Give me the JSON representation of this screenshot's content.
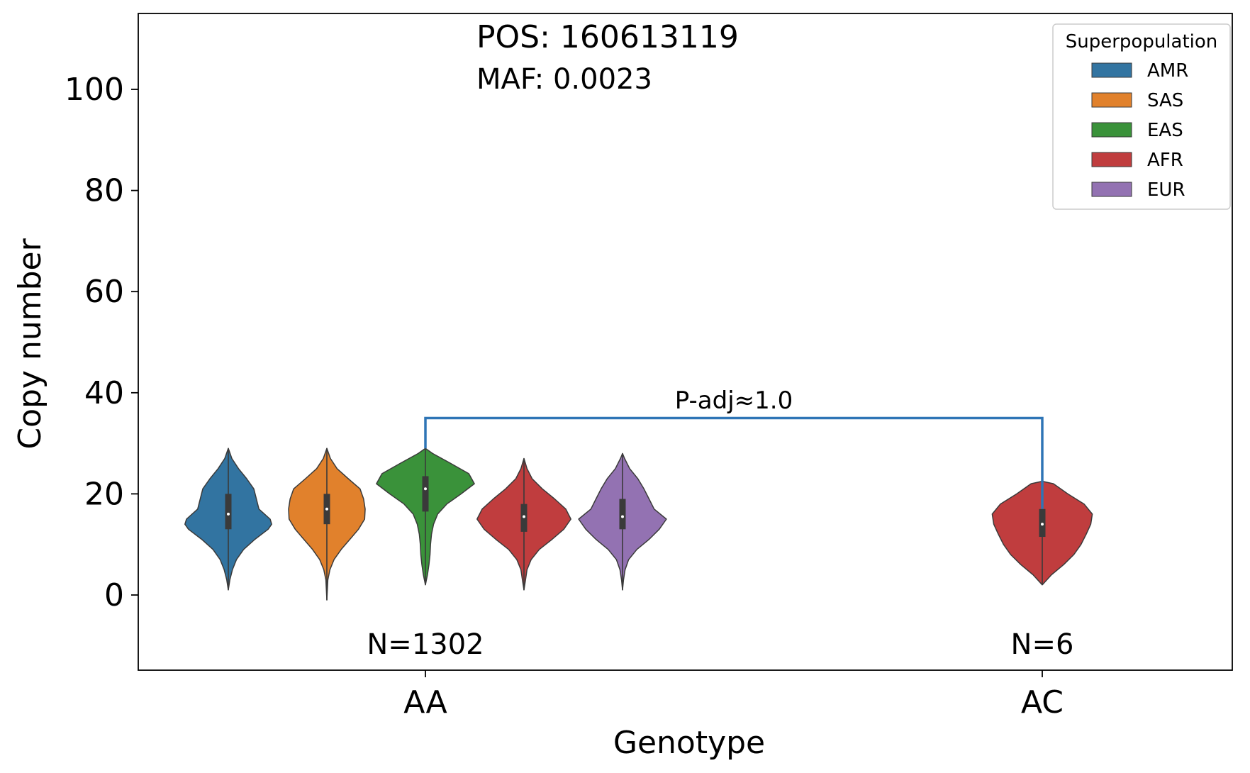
{
  "chart_data": {
    "type": "violin",
    "annotations": {
      "pos": "POS: 160613119",
      "maf": "MAF: 0.0023",
      "pvalue": "P-adj≈1.0"
    },
    "xlabel": "Genotype",
    "ylabel": "Copy number",
    "categories": [
      "AA",
      "AC"
    ],
    "counts": [
      "N=1302",
      "N=6"
    ],
    "ylim": [
      -15,
      115
    ],
    "yticks": [
      0,
      20,
      40,
      60,
      80,
      100
    ],
    "ytick_labels": [
      "0",
      "20",
      "40",
      "60",
      "80",
      "100"
    ],
    "grid": false,
    "legend": {
      "title": "Superpopulation",
      "placement": "top-right"
    },
    "series": [
      {
        "name": "AMR",
        "color": "#3274a1",
        "groups": [
          {
            "category": "AA",
            "min": 1,
            "max": 29,
            "q1": 13,
            "median": 16,
            "q3": 20,
            "profile": [
              [
                1,
                0.0
              ],
              [
                3,
                0.03
              ],
              [
                5,
                0.08
              ],
              [
                7,
                0.16
              ],
              [
                9,
                0.3
              ],
              [
                11,
                0.52
              ],
              [
                13,
                0.78
              ],
              [
                14,
                0.85
              ],
              [
                15,
                0.82
              ],
              [
                17,
                0.6
              ],
              [
                19,
                0.55
              ],
              [
                21,
                0.5
              ],
              [
                23,
                0.36
              ],
              [
                25,
                0.2
              ],
              [
                27,
                0.07
              ],
              [
                29,
                0.0
              ]
            ]
          },
          {
            "category": "AC"
          }
        ]
      },
      {
        "name": "SAS",
        "color": "#e1812c",
        "groups": [
          {
            "category": "AA",
            "min": -1,
            "max": 29,
            "q1": 14,
            "median": 17,
            "q3": 20,
            "profile": [
              [
                -1,
                0.0
              ],
              [
                1,
                0.01
              ],
              [
                3,
                0.02
              ],
              [
                5,
                0.06
              ],
              [
                7,
                0.14
              ],
              [
                9,
                0.28
              ],
              [
                11,
                0.45
              ],
              [
                13,
                0.62
              ],
              [
                15,
                0.74
              ],
              [
                17,
                0.75
              ],
              [
                19,
                0.72
              ],
              [
                21,
                0.65
              ],
              [
                23,
                0.42
              ],
              [
                25,
                0.2
              ],
              [
                27,
                0.07
              ],
              [
                29,
                0.0
              ]
            ]
          },
          {
            "category": "AC"
          }
        ]
      },
      {
        "name": "EAS",
        "color": "#3a923a",
        "groups": [
          {
            "category": "AA",
            "min": 2,
            "max": 29,
            "q1": 16.5,
            "median": 21,
            "q3": 23.5,
            "profile": [
              [
                2,
                0.0
              ],
              [
                4,
                0.04
              ],
              [
                6,
                0.07
              ],
              [
                8,
                0.09
              ],
              [
                10,
                0.1
              ],
              [
                12,
                0.12
              ],
              [
                14,
                0.16
              ],
              [
                16,
                0.24
              ],
              [
                18,
                0.42
              ],
              [
                20,
                0.7
              ],
              [
                22,
                0.96
              ],
              [
                24,
                0.85
              ],
              [
                26,
                0.5
              ],
              [
                28,
                0.14
              ],
              [
                29,
                0.0
              ]
            ]
          },
          {
            "category": "AC"
          }
        ]
      },
      {
        "name": "AFR",
        "color": "#c03d3e",
        "groups": [
          {
            "category": "AA",
            "min": 1,
            "max": 27,
            "q1": 12.5,
            "median": 15.5,
            "q3": 18,
            "profile": [
              [
                1,
                0.0
              ],
              [
                3,
                0.03
              ],
              [
                5,
                0.06
              ],
              [
                7,
                0.14
              ],
              [
                9,
                0.3
              ],
              [
                11,
                0.55
              ],
              [
                13,
                0.78
              ],
              [
                15,
                0.92
              ],
              [
                17,
                0.82
              ],
              [
                19,
                0.6
              ],
              [
                21,
                0.36
              ],
              [
                23,
                0.16
              ],
              [
                25,
                0.06
              ],
              [
                27,
                0.0
              ]
            ]
          },
          {
            "category": "AC",
            "min": 2,
            "max": 22.5,
            "q1": 11.5,
            "median": 14,
            "q3": 17,
            "profile": [
              [
                2,
                0.0
              ],
              [
                4,
                0.18
              ],
              [
                6,
                0.42
              ],
              [
                8,
                0.62
              ],
              [
                10,
                0.76
              ],
              [
                12,
                0.86
              ],
              [
                14,
                0.95
              ],
              [
                16,
                0.98
              ],
              [
                18,
                0.82
              ],
              [
                20,
                0.5
              ],
              [
                22,
                0.22
              ],
              [
                22.5,
                0.0
              ]
            ]
          }
        ]
      },
      {
        "name": "EUR",
        "color": "#9372b2",
        "groups": [
          {
            "category": "AA",
            "min": 1,
            "max": 28,
            "q1": 13,
            "median": 15.5,
            "q3": 19,
            "profile": [
              [
                1,
                0.0
              ],
              [
                3,
                0.02
              ],
              [
                5,
                0.05
              ],
              [
                7,
                0.12
              ],
              [
                9,
                0.28
              ],
              [
                11,
                0.52
              ],
              [
                13,
                0.72
              ],
              [
                15,
                0.86
              ],
              [
                17,
                0.62
              ],
              [
                19,
                0.52
              ],
              [
                21,
                0.42
              ],
              [
                23,
                0.3
              ],
              [
                25,
                0.14
              ],
              [
                27,
                0.04
              ],
              [
                28,
                0.0
              ]
            ]
          },
          {
            "category": "AC"
          }
        ]
      }
    ],
    "comparison": {
      "from": "AA",
      "to": "AC",
      "y": 35,
      "left_drop_to": 29,
      "right_drop_to": 17,
      "color": "#2e75b6"
    }
  }
}
